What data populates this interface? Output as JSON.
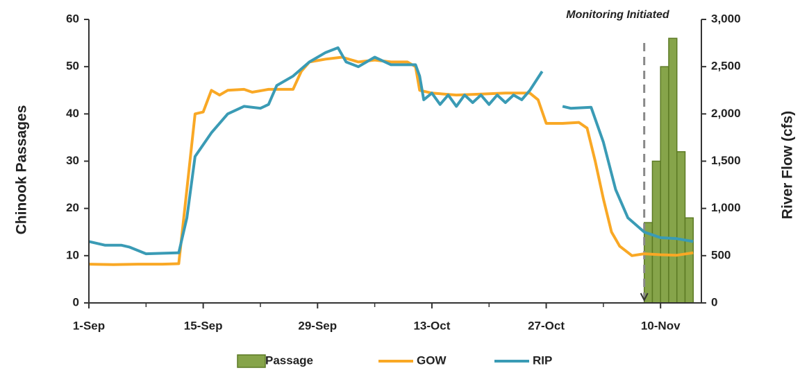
{
  "chart_data": {
    "type": "bar-line",
    "y_label": "Chinook Passages",
    "y2_label": "River Flow (cfs)",
    "annotation": {
      "text": "Monitoring Initiated",
      "x": 68
    },
    "xlim": [
      0,
      75
    ],
    "xticks": [
      {
        "value": 0,
        "label": "1-Sep"
      },
      {
        "value": 14,
        "label": "15-Sep"
      },
      {
        "value": 28,
        "label": "29-Sep"
      },
      {
        "value": 42,
        "label": "13-Oct"
      },
      {
        "value": 56,
        "label": "27-Oct"
      },
      {
        "value": 70,
        "label": "10-Nov"
      }
    ],
    "ylim": [
      0,
      60
    ],
    "yticks": [
      0,
      10,
      20,
      30,
      40,
      50,
      60
    ],
    "y2lim": [
      0,
      3000
    ],
    "y2ticks": [
      0,
      500,
      {
        "value": 1000,
        "label": "1,000"
      },
      {
        "value": 1500,
        "label": "1,500"
      },
      {
        "value": 2000,
        "label": "2,000"
      },
      {
        "value": 2500,
        "label": "2,500"
      },
      {
        "value": 3000,
        "label": "3,000"
      }
    ],
    "legend": "bottom",
    "series": [
      {
        "name": "Passage",
        "type": "bar",
        "color": "#86a44a",
        "x": [
          68.5,
          69.5,
          70.5,
          71.5,
          72.5,
          73.5
        ],
        "values": [
          17,
          30,
          50,
          56,
          32,
          18
        ]
      },
      {
        "name": "GOW",
        "type": "line",
        "axis": "y2",
        "color": "#f9a825",
        "x": [
          0,
          3,
          6,
          9,
          11,
          12,
          13,
          14,
          15,
          16,
          17,
          19,
          20,
          22,
          25,
          26,
          27,
          29,
          31,
          33,
          35,
          37,
          39,
          40,
          40.5,
          42,
          45,
          48,
          51,
          54,
          55,
          56,
          58,
          60,
          61,
          62,
          63,
          64,
          65,
          66.5,
          68,
          70,
          72,
          74
        ],
        "values": [
          410,
          405,
          410,
          410,
          415,
          1200,
          2000,
          2020,
          2250,
          2200,
          2250,
          2260,
          2230,
          2260,
          2260,
          2450,
          2550,
          2580,
          2600,
          2550,
          2570,
          2550,
          2550,
          2500,
          2250,
          2220,
          2200,
          2210,
          2220,
          2220,
          2150,
          1900,
          1900,
          1910,
          1850,
          1500,
          1100,
          750,
          600,
          500,
          520,
          510,
          505,
          530
        ]
      },
      {
        "name": "RIP",
        "type": "line",
        "axis": "y2",
        "color": "#3a9bb5",
        "x": [
          0,
          2,
          4,
          5,
          7,
          9,
          11,
          12,
          13,
          15,
          17,
          19,
          21,
          22,
          23,
          25,
          27,
          29,
          30.5,
          31.5,
          33,
          35,
          37,
          40,
          40.5,
          41,
          42,
          43,
          44,
          45,
          46,
          47,
          48,
          49,
          50,
          51,
          52,
          53,
          54,
          55.5,
          null,
          58,
          59,
          61.5,
          63,
          64.5,
          66,
          68,
          69,
          70,
          72,
          74
        ],
        "values": [
          650,
          610,
          610,
          590,
          520,
          525,
          530,
          900,
          1550,
          1800,
          2000,
          2080,
          2060,
          2100,
          2300,
          2400,
          2550,
          2650,
          2700,
          2550,
          2500,
          2600,
          2520,
          2520,
          2400,
          2150,
          2220,
          2100,
          2200,
          2080,
          2200,
          2120,
          2200,
          2100,
          2200,
          2120,
          2200,
          2150,
          2250,
          2450,
          null,
          2080,
          2060,
          2070,
          1700,
          1200,
          900,
          750,
          720,
          690,
          680,
          650
        ]
      }
    ]
  }
}
